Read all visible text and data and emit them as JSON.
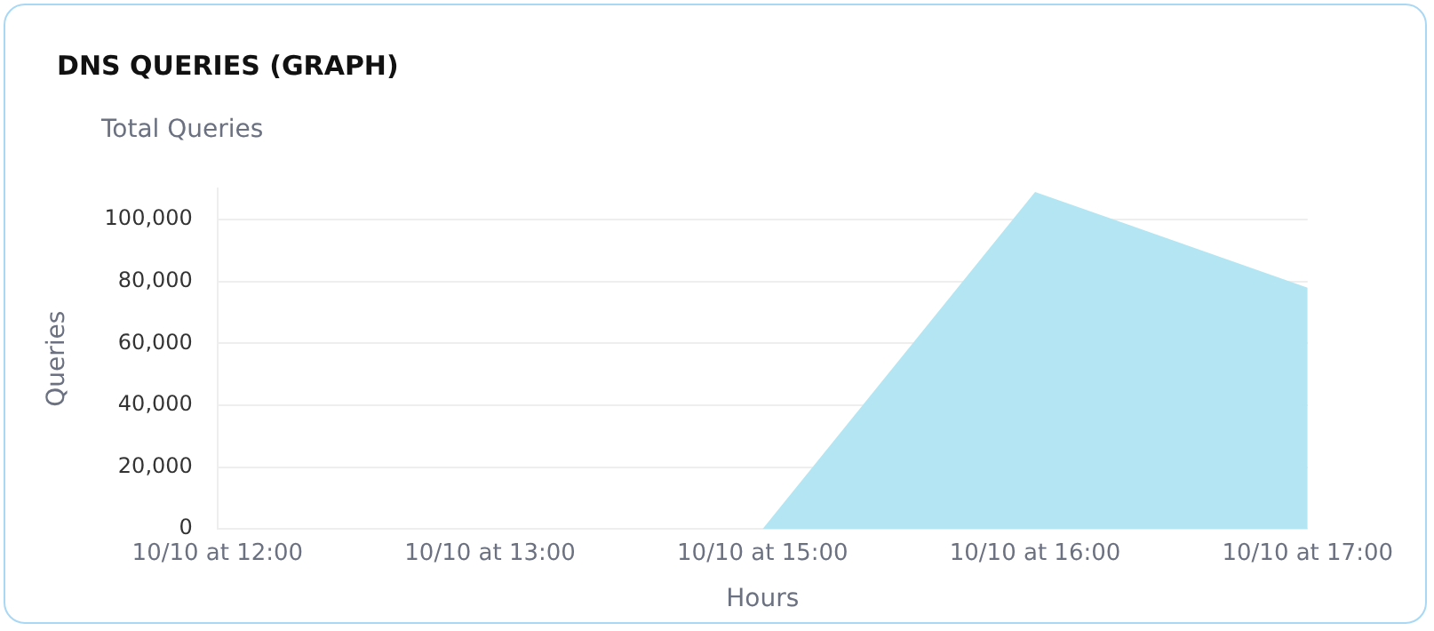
{
  "chart_data": {
    "type": "area",
    "title": "DNS QUERIES (GRAPH)",
    "subtitle": "Total Queries",
    "xlabel": "Hours",
    "ylabel": "Queries",
    "categories": [
      "10/10 at 12:00",
      "10/10 at 13:00",
      "10/10 at 15:00",
      "10/10 at 16:00",
      "10/10 at 17:00"
    ],
    "values": [
      0,
      0,
      0,
      109000,
      78000
    ],
    "color": "#b3e6f2",
    "ylim": [
      0,
      110000
    ],
    "yticks": [
      {
        "value": 0,
        "label": "0"
      },
      {
        "value": 20000,
        "label": "20,000"
      },
      {
        "value": 40000,
        "label": "40,000"
      },
      {
        "value": 60000,
        "label": "60,000"
      },
      {
        "value": 80000,
        "label": "80,000"
      },
      {
        "value": 100000,
        "label": "100,000"
      }
    ],
    "grid": "y",
    "legend": false,
    "marker": "none"
  }
}
